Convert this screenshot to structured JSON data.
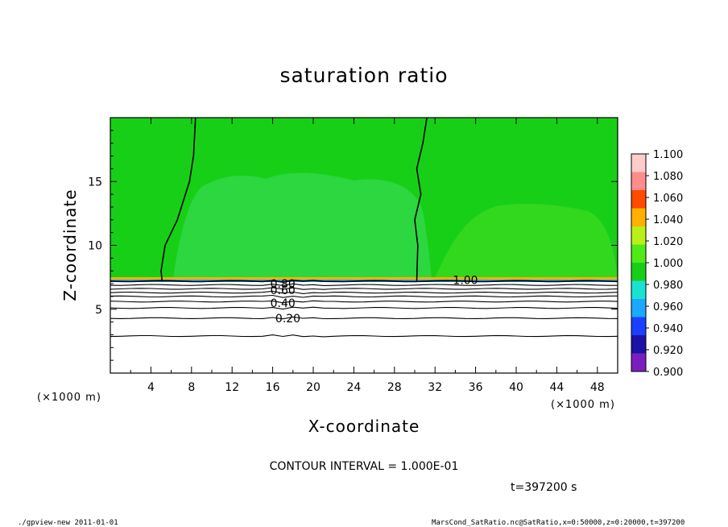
{
  "chart_data": {
    "type": "heatmap",
    "title": "saturation ratio",
    "xlabel": "X-coordinate",
    "ylabel": "Z-coordinate",
    "x_unit": "(×1000 m)",
    "y_unit": "(×1000 m)",
    "xlim": [
      0,
      50
    ],
    "ylim": [
      0,
      20
    ],
    "x_ticks": [
      4,
      8,
      12,
      16,
      20,
      24,
      28,
      32,
      36,
      40,
      44,
      48
    ],
    "y_ticks": [
      5,
      10,
      15
    ],
    "colorbar": {
      "levels": [
        0.9,
        0.92,
        0.94,
        0.96,
        0.98,
        1.0,
        1.02,
        1.04,
        1.06,
        1.08,
        1.1
      ],
      "labels": [
        "0.900",
        "0.920",
        "0.940",
        "0.960",
        "0.980",
        "1.000",
        "1.020",
        "1.040",
        "1.060",
        "1.080",
        "1.100"
      ],
      "colors": [
        "#7a1fbf",
        "#1c12a8",
        "#1a3fff",
        "#1aa9ff",
        "#19e3d0",
        "#18cf18",
        "#50ea18",
        "#b8f018",
        "#ffb000",
        "#ff4a00",
        "#ff8c8c",
        "#ffcccc"
      ]
    },
    "contour_labels": [
      {
        "text": "1.00",
        "x": 35.0,
        "z": 7.3
      },
      {
        "text": "0.80",
        "x": 17.0,
        "z": 7.0
      },
      {
        "text": "0.60",
        "x": 17.0,
        "z": 6.5
      },
      {
        "text": "0.40",
        "x": 17.0,
        "z": 5.5
      },
      {
        "text": "0.20",
        "x": 17.5,
        "z": 4.3
      }
    ],
    "saturated_layer_base_z": 7.2,
    "contour_interval_text": "CONTOUR INTERVAL = 1.000E-01",
    "time_text": "t=397200 s"
  },
  "footer": {
    "left": "./gpview-new  2011-01-01",
    "right": "MarsCond_SatRatio.nc@SatRatio,x=0:50000,z=0:20000,t=397200"
  }
}
